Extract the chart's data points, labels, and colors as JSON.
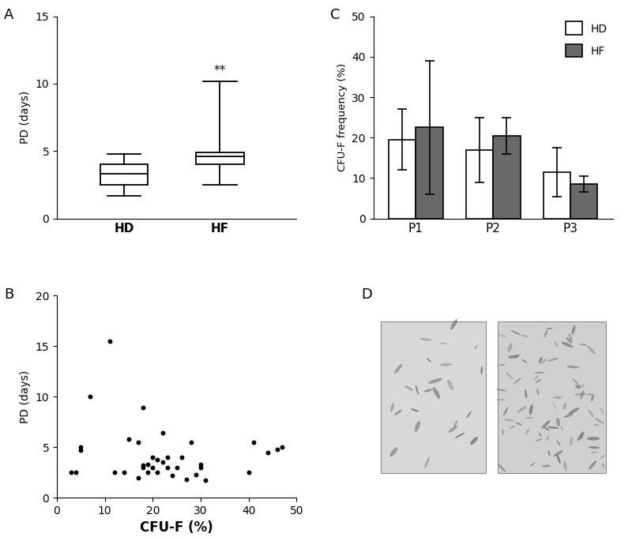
{
  "panel_A": {
    "label": "A",
    "HD": {
      "median": 3.3,
      "q1": 2.5,
      "q3": 4.0,
      "whisker_low": 1.7,
      "whisker_high": 4.8
    },
    "HF": {
      "median": 4.6,
      "q1": 4.0,
      "q3": 4.9,
      "whisker_low": 2.5,
      "whisker_high": 10.2,
      "annotation": "**"
    },
    "ylabel": "PD (days)",
    "ylim": [
      0,
      15
    ],
    "yticks": [
      0,
      5,
      10,
      15
    ],
    "xticks": [
      "HD",
      "HF"
    ]
  },
  "panel_B": {
    "label": "B",
    "scatter_x": [
      3,
      4,
      5,
      5,
      7,
      11,
      12,
      14,
      15,
      17,
      17,
      18,
      18,
      18,
      19,
      19,
      20,
      20,
      21,
      21,
      22,
      22,
      23,
      23,
      24,
      25,
      26,
      27,
      28,
      29,
      30,
      30,
      31,
      40,
      41,
      44,
      46,
      47
    ],
    "scatter_y": [
      2.5,
      2.5,
      4.7,
      5.0,
      10.0,
      15.5,
      2.5,
      2.5,
      5.8,
      5.5,
      2.0,
      3.2,
      3.0,
      8.9,
      3.3,
      2.5,
      4.0,
      3.0,
      3.8,
      2.5,
      6.4,
      3.5,
      3.0,
      4.0,
      2.2,
      3.0,
      4.0,
      1.8,
      5.5,
      2.3,
      3.0,
      3.3,
      1.7,
      2.5,
      5.5,
      4.5,
      4.8,
      5.0
    ],
    "xlabel": "CFU-F (%)",
    "ylabel": "PD (days)",
    "xlim": [
      0,
      50
    ],
    "ylim": [
      0,
      20
    ],
    "xticks": [
      0,
      10,
      20,
      30,
      40,
      50
    ],
    "yticks": [
      0,
      5,
      10,
      15,
      20
    ]
  },
  "panel_C": {
    "label": "C",
    "categories": [
      "P1",
      "P2",
      "P3"
    ],
    "HD_means": [
      19.5,
      17.0,
      11.5
    ],
    "HD_errors": [
      7.5,
      8.0,
      6.0
    ],
    "HF_means": [
      22.5,
      20.5,
      8.5
    ],
    "HF_errors": [
      16.5,
      4.5,
      2.0
    ],
    "ylabel": "CFU-F frequency (%)",
    "ylim": [
      0,
      50
    ],
    "yticks": [
      0,
      10,
      20,
      30,
      40,
      50
    ],
    "bar_width": 0.35,
    "HD_color": "#ffffff",
    "HF_color": "#696969",
    "edge_color": "#000000"
  },
  "panel_D": {
    "label": "D",
    "left_bg": "#d8d8d8",
    "right_bg": "#d0d0d0"
  },
  "background_color": "#ffffff",
  "font_color": "#000000",
  "font_size": 10,
  "label_fontsize": 13
}
